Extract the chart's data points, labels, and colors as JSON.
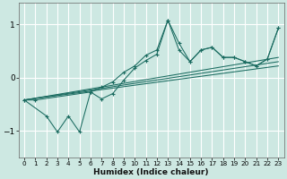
{
  "xlabel": "Humidex (Indice chaleur)",
  "xlim": [
    -0.5,
    23.5
  ],
  "ylim": [
    -1.5,
    1.4
  ],
  "xticks": [
    0,
    1,
    2,
    3,
    4,
    5,
    6,
    7,
    8,
    9,
    10,
    11,
    12,
    13,
    14,
    15,
    16,
    17,
    18,
    19,
    20,
    21,
    22,
    23
  ],
  "yticks": [
    -1,
    0,
    1
  ],
  "bg_color": "#cde8e2",
  "grid_color": "#ffffff",
  "line_color": "#1a6b60",
  "series1_x": [
    0,
    1,
    6,
    7,
    8,
    9,
    10,
    11,
    12,
    13,
    14,
    15,
    16,
    17,
    18,
    19,
    20,
    21,
    22,
    23
  ],
  "series1_y": [
    -0.42,
    -0.42,
    -0.27,
    -0.18,
    -0.08,
    0.1,
    0.22,
    0.42,
    0.52,
    1.08,
    0.65,
    0.3,
    0.52,
    0.57,
    0.38,
    0.38,
    0.3,
    0.22,
    0.35,
    0.93
  ],
  "series2_x": [
    0,
    2,
    3,
    4,
    5,
    6,
    7,
    8,
    9,
    10,
    11,
    12,
    13,
    14,
    15,
    16,
    17,
    18,
    19,
    20,
    21,
    22,
    23
  ],
  "series2_y": [
    -0.42,
    -0.72,
    -1.02,
    -0.72,
    -1.02,
    -0.27,
    -0.4,
    -0.3,
    -0.05,
    0.18,
    0.32,
    0.44,
    1.08,
    0.52,
    0.3,
    0.52,
    0.57,
    0.38,
    0.38,
    0.3,
    0.22,
    0.35,
    0.93
  ],
  "linear_lines": [
    {
      "x": [
        0,
        23
      ],
      "y": [
        -0.42,
        0.38
      ]
    },
    {
      "x": [
        0,
        23
      ],
      "y": [
        -0.42,
        0.3
      ]
    },
    {
      "x": [
        0,
        23
      ],
      "y": [
        -0.42,
        0.22
      ]
    }
  ]
}
